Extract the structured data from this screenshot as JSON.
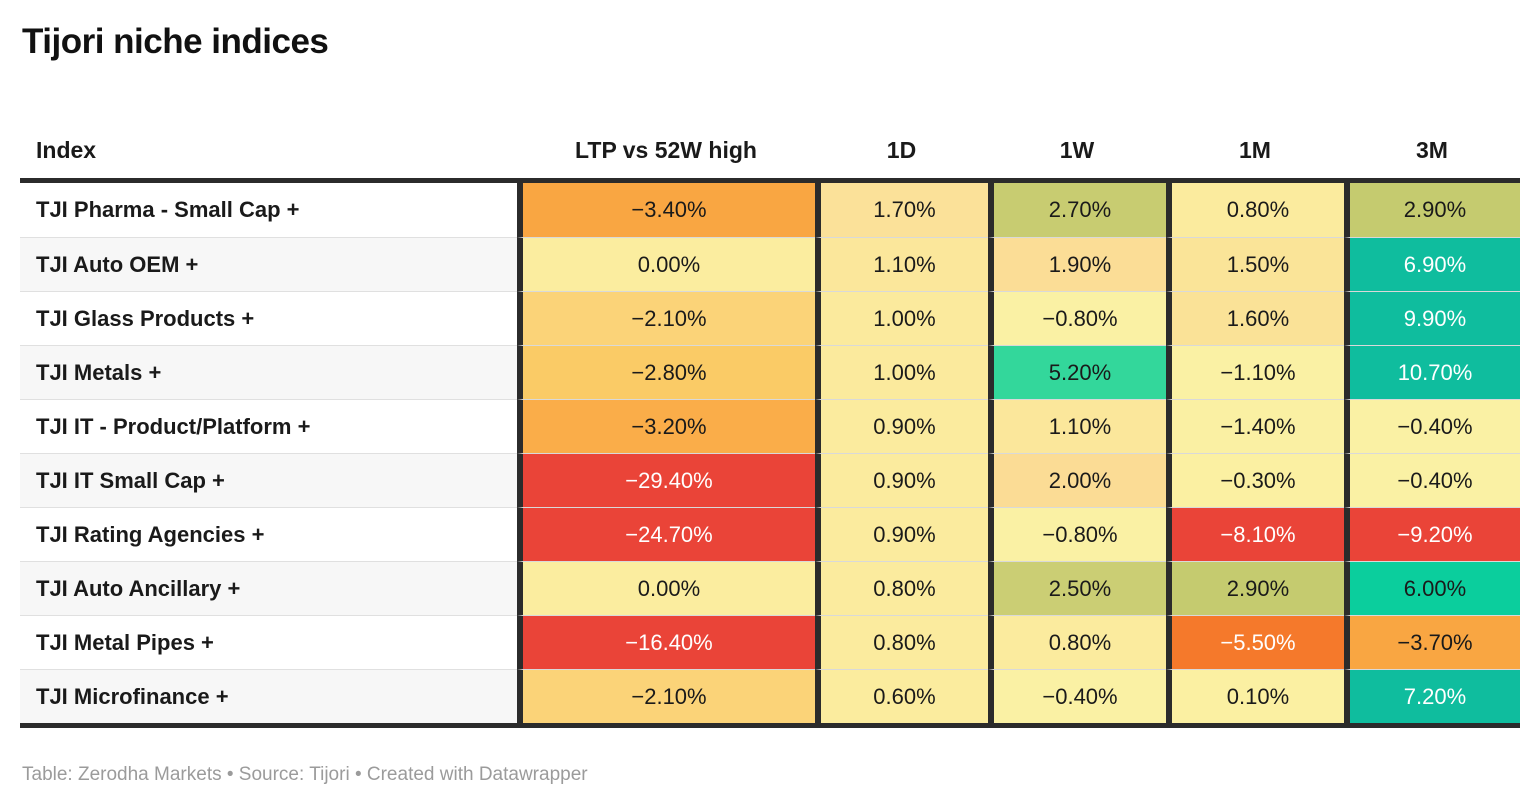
{
  "title": "Tijori niche indices",
  "footer": "Table: Zerodha Markets • Source: Tijori • Created with Datawrapper",
  "colors": {
    "border_dark": "#2b2b2b",
    "row_alt_bg": "#f7f7f7",
    "text_dark": "#1a1a1a",
    "text_light": "#ffffff",
    "footer_text": "#9b9b9b",
    "strong_negative_red": "#ea4438",
    "negative_orange": "#f5792b",
    "mild_negative_amber": "#f9a642",
    "neutral_yellow": "#faf1a4",
    "mild_positive_olive": "#c5cb6f",
    "positive_green": "#33d79b",
    "strong_positive_teal": "#0fbd9e"
  },
  "chart_data": {
    "type": "table",
    "title": "Tijori niche indices",
    "columns": [
      "Index",
      "LTP vs 52W high",
      "1D",
      "1W",
      "1M",
      "3M"
    ],
    "value_columns_keys": [
      "ltp-vs-52w-high",
      "1d",
      "1w",
      "1m",
      "3m"
    ],
    "rows": [
      {
        "index": "TJI Pharma - Small Cap +",
        "values": [
          "−3.40%",
          "1.70%",
          "2.70%",
          "0.80%",
          "2.90%"
        ],
        "numeric": [
          -3.4,
          1.7,
          2.7,
          0.8,
          2.9
        ],
        "cell_colors": [
          "#f9a642",
          "#fbe199",
          "#c8cc71",
          "#fbeb9e",
          "#c5cb6f"
        ],
        "text_tones": [
          "dark",
          "dark",
          "dark",
          "dark",
          "dark"
        ]
      },
      {
        "index": "TJI Auto OEM +",
        "values": [
          "0.00%",
          "1.10%",
          "1.90%",
          "1.50%",
          "6.90%"
        ],
        "numeric": [
          0.0,
          1.1,
          1.9,
          1.5,
          6.9
        ],
        "cell_colors": [
          "#fbed9f",
          "#fbe79b",
          "#fbdd96",
          "#fae498",
          "#0fbd9e"
        ],
        "text_tones": [
          "dark",
          "dark",
          "dark",
          "dark",
          "light"
        ]
      },
      {
        "index": "TJI Glass Products +",
        "values": [
          "−2.10%",
          "1.00%",
          "−0.80%",
          "1.60%",
          "9.90%"
        ],
        "numeric": [
          -2.1,
          1.0,
          -0.8,
          1.6,
          9.9
        ],
        "cell_colors": [
          "#fbd378",
          "#fbea9d",
          "#faf1a4",
          "#fae297",
          "#0fbd9e"
        ],
        "text_tones": [
          "dark",
          "dark",
          "dark",
          "dark",
          "light"
        ]
      },
      {
        "index": "TJI Metals +",
        "values": [
          "−2.80%",
          "1.00%",
          "5.20%",
          "−1.10%",
          "10.70%"
        ],
        "numeric": [
          -2.8,
          1.0,
          5.2,
          -1.1,
          10.7
        ],
        "cell_colors": [
          "#facb66",
          "#fbea9d",
          "#33d79b",
          "#faf1a4",
          "#0fbd9e"
        ],
        "text_tones": [
          "dark",
          "dark",
          "dark",
          "dark",
          "light"
        ]
      },
      {
        "index": "TJI IT - Product/Platform +",
        "values": [
          "−3.20%",
          "0.90%",
          "1.10%",
          "−1.40%",
          "−0.40%"
        ],
        "numeric": [
          -3.2,
          0.9,
          1.1,
          -1.4,
          -0.4
        ],
        "cell_colors": [
          "#faad49",
          "#fbeb9e",
          "#fbe79b",
          "#faf0a3",
          "#faf1a4"
        ],
        "text_tones": [
          "dark",
          "dark",
          "dark",
          "dark",
          "dark"
        ]
      },
      {
        "index": "TJI IT Small Cap +",
        "values": [
          "−29.40%",
          "0.90%",
          "2.00%",
          "−0.30%",
          "−0.40%"
        ],
        "numeric": [
          -29.4,
          0.9,
          2.0,
          -0.3,
          -0.4
        ],
        "cell_colors": [
          "#ea4438",
          "#fbeb9e",
          "#fbdc95",
          "#fbf0a2",
          "#faf1a4"
        ],
        "text_tones": [
          "light",
          "dark",
          "dark",
          "dark",
          "dark"
        ]
      },
      {
        "index": "TJI Rating Agencies +",
        "values": [
          "−24.70%",
          "0.90%",
          "−0.80%",
          "−8.10%",
          "−9.20%"
        ],
        "numeric": [
          -24.7,
          0.9,
          -0.8,
          -8.1,
          -9.2
        ],
        "cell_colors": [
          "#ea4438",
          "#fbeb9e",
          "#faf1a4",
          "#ea4438",
          "#ea4438"
        ],
        "text_tones": [
          "light",
          "dark",
          "dark",
          "light",
          "light"
        ]
      },
      {
        "index": "TJI Auto Ancillary +",
        "values": [
          "0.00%",
          "0.80%",
          "2.50%",
          "2.90%",
          "6.00%"
        ],
        "numeric": [
          0.0,
          0.8,
          2.5,
          2.9,
          6.0
        ],
        "cell_colors": [
          "#fbed9f",
          "#fbeb9e",
          "#cbce74",
          "#c5cb6f",
          "#0bce9d"
        ],
        "text_tones": [
          "dark",
          "dark",
          "dark",
          "dark",
          "dark"
        ]
      },
      {
        "index": "TJI Metal Pipes +",
        "values": [
          "−16.40%",
          "0.80%",
          "0.80%",
          "−5.50%",
          "−3.70%"
        ],
        "numeric": [
          -16.4,
          0.8,
          0.8,
          -5.5,
          -3.7
        ],
        "cell_colors": [
          "#ea4438",
          "#fbeb9e",
          "#fbeb9e",
          "#f5792b",
          "#f9a642"
        ],
        "text_tones": [
          "light",
          "dark",
          "dark",
          "light",
          "dark"
        ]
      },
      {
        "index": "TJI Microfinance +",
        "values": [
          "−2.10%",
          "0.60%",
          "−0.40%",
          "0.10%",
          "7.20%"
        ],
        "numeric": [
          -2.1,
          0.6,
          -0.4,
          0.1,
          7.2
        ],
        "cell_colors": [
          "#fbd378",
          "#fbec9e",
          "#faf1a4",
          "#fbf0a2",
          "#0fbd9e"
        ],
        "text_tones": [
          "dark",
          "dark",
          "dark",
          "dark",
          "light"
        ]
      }
    ]
  }
}
